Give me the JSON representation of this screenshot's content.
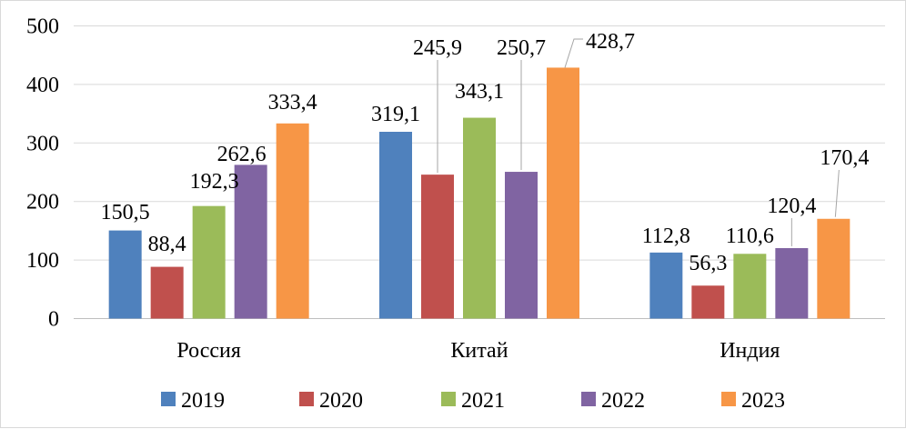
{
  "chart_data": {
    "type": "bar",
    "title": "",
    "xlabel": "",
    "ylabel": "",
    "ylim": [
      0,
      500
    ],
    "yticks": [
      "0",
      "100",
      "200",
      "300",
      "400",
      "500"
    ],
    "grid": true,
    "legend_position": "bottom",
    "categories": [
      "Россия",
      "Китай",
      "Индия"
    ],
    "series": [
      {
        "name": "2019",
        "color": "#4f81bd",
        "values": [
          150.5,
          319.1,
          112.8
        ],
        "labels": [
          "150,5",
          "319,1",
          "112,8"
        ]
      },
      {
        "name": "2020",
        "color": "#c0504d",
        "values": [
          88.4,
          245.9,
          56.3
        ],
        "labels": [
          "88,4",
          "245,9",
          "56,3"
        ]
      },
      {
        "name": "2021",
        "color": "#9bbb59",
        "values": [
          192.3,
          343.1,
          110.6
        ],
        "labels": [
          "192,3",
          "343,1",
          "110,6"
        ]
      },
      {
        "name": "2022",
        "color": "#8064a2",
        "values": [
          262.6,
          250.7,
          120.4
        ],
        "labels": [
          "262,6",
          "250,7",
          "120,4"
        ]
      },
      {
        "name": "2023",
        "color": "#f79646",
        "values": [
          333.4,
          428.7,
          170.4
        ],
        "labels": [
          "333,4",
          "428,7",
          "170,4"
        ]
      }
    ]
  }
}
